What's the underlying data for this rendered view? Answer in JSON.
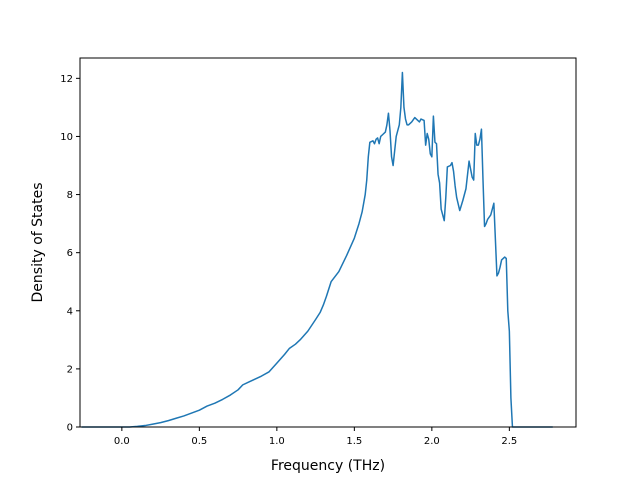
{
  "chart_data": {
    "type": "line",
    "title": "",
    "xlabel": "Frequency (THz)",
    "ylabel": "Density of States",
    "xlim": [
      -0.27,
      2.93
    ],
    "ylim": [
      0,
      12.7
    ],
    "x_ticks": [
      0.0,
      0.5,
      1.0,
      1.5,
      2.0,
      2.5
    ],
    "x_tick_labels": [
      "0.0",
      "0.5",
      "1.0",
      "1.5",
      "2.0",
      "2.5"
    ],
    "y_ticks": [
      0,
      2,
      4,
      6,
      8,
      10,
      12
    ],
    "y_tick_labels": [
      "0",
      "2",
      "4",
      "6",
      "8",
      "10",
      "12"
    ],
    "grid": false,
    "legend": "none",
    "colors": {
      "line": "#1f77b4"
    },
    "series": [
      {
        "x": [
          -0.26,
          -0.15,
          0.0,
          0.05,
          0.1,
          0.15,
          0.2,
          0.25,
          0.3,
          0.35,
          0.4,
          0.45,
          0.5,
          0.55,
          0.6,
          0.65,
          0.7,
          0.75,
          0.78,
          0.82,
          0.86,
          0.9,
          0.95,
          1.0,
          1.05,
          1.08,
          1.12,
          1.15,
          1.2,
          1.25,
          1.28,
          1.3,
          1.32,
          1.35,
          1.4,
          1.45,
          1.5,
          1.53,
          1.55,
          1.57,
          1.58,
          1.59,
          1.6,
          1.62,
          1.63,
          1.64,
          1.65,
          1.66,
          1.67,
          1.68,
          1.7,
          1.71,
          1.72,
          1.73,
          1.74,
          1.75,
          1.76,
          1.77,
          1.79,
          1.8,
          1.81,
          1.82,
          1.83,
          1.84,
          1.85,
          1.87,
          1.89,
          1.9,
          1.92,
          1.93,
          1.95,
          1.96,
          1.97,
          1.98,
          1.99,
          2.0,
          2.01,
          2.02,
          2.03,
          2.04,
          2.05,
          2.06,
          2.08,
          2.09,
          2.1,
          2.12,
          2.13,
          2.14,
          2.15,
          2.16,
          2.18,
          2.2,
          2.22,
          2.24,
          2.26,
          2.27,
          2.28,
          2.29,
          2.3,
          2.31,
          2.32,
          2.33,
          2.34,
          2.35,
          2.36,
          2.38,
          2.4,
          2.42,
          2.43,
          2.44,
          2.45,
          2.47,
          2.48,
          2.49,
          2.5,
          2.51,
          2.52,
          2.53,
          2.54,
          2.55,
          2.6,
          2.7,
          2.78
        ],
        "y": [
          0.0,
          0.0,
          0.0,
          0.0,
          0.02,
          0.05,
          0.1,
          0.15,
          0.22,
          0.3,
          0.38,
          0.48,
          0.58,
          0.72,
          0.82,
          0.95,
          1.1,
          1.28,
          1.45,
          1.55,
          1.65,
          1.75,
          1.9,
          2.2,
          2.5,
          2.7,
          2.85,
          3.0,
          3.3,
          3.7,
          3.95,
          4.2,
          4.5,
          5.0,
          5.35,
          5.9,
          6.5,
          7.0,
          7.4,
          8.0,
          8.5,
          9.3,
          9.8,
          9.85,
          9.75,
          9.9,
          9.95,
          9.75,
          10.0,
          10.05,
          10.15,
          10.4,
          10.8,
          10.2,
          9.3,
          9.0,
          9.5,
          10.0,
          10.4,
          11.0,
          12.2,
          11.0,
          10.6,
          10.4,
          10.4,
          10.5,
          10.65,
          10.6,
          10.5,
          10.6,
          10.55,
          9.7,
          10.1,
          9.9,
          9.4,
          9.3,
          10.7,
          9.8,
          9.75,
          8.7,
          8.4,
          7.5,
          7.1,
          7.9,
          8.95,
          9.0,
          9.1,
          8.8,
          8.3,
          7.9,
          7.45,
          7.8,
          8.2,
          9.15,
          8.6,
          8.5,
          10.1,
          9.7,
          9.7,
          9.9,
          10.25,
          8.5,
          6.9,
          7.0,
          7.15,
          7.3,
          7.7,
          5.2,
          5.3,
          5.5,
          5.75,
          5.85,
          5.8,
          4.0,
          3.3,
          1.0,
          0.0,
          0.0,
          0.0,
          0.0,
          0.0,
          0.0,
          0.0
        ]
      }
    ]
  }
}
